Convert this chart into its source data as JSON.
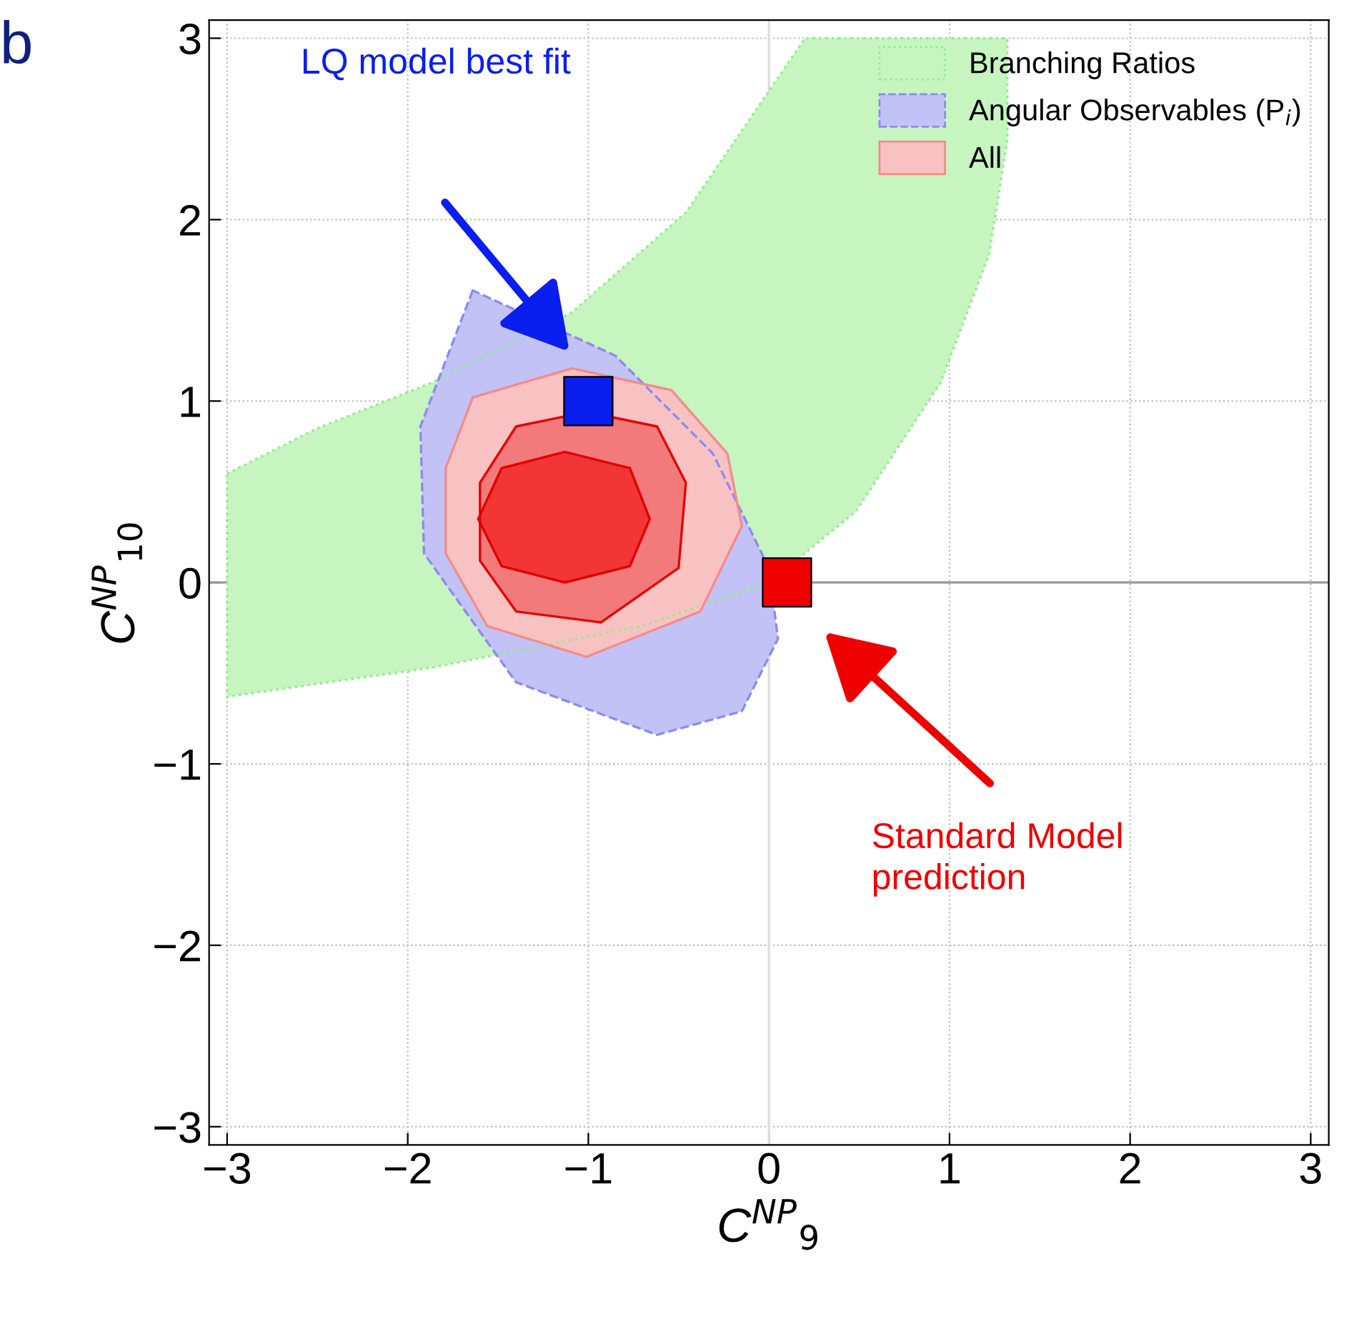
{
  "chart_data": {
    "type": "area",
    "xlabel": "C$^{NP}$$_{9}$",
    "ylabel": "C$^{NP}$$_{10}$",
    "xlim": [
      -3.1,
      3.1
    ],
    "ylim": [
      -3.1,
      3.1
    ],
    "xticks": [
      {
        "value": -3,
        "label": "−3"
      },
      {
        "value": -2,
        "label": "−2"
      },
      {
        "value": -1,
        "label": "−1"
      },
      0,
      1,
      2,
      3
    ],
    "yticks": [
      {
        "value": -3,
        "label": "−3"
      },
      {
        "value": -2,
        "label": "−2"
      },
      {
        "value": -1,
        "label": "−1"
      },
      0,
      1,
      2,
      3
    ],
    "grid": true,
    "legend": "top right",
    "ref_lines": [
      {
        "axis": "y",
        "value": 0,
        "label": null,
        "color": "#999999"
      },
      {
        "axis": "x",
        "value": 0,
        "label": null,
        "color": "#dddddd"
      }
    ],
    "series": [
      {
        "name": "Branching Ratios",
        "color": "#c6f5c0",
        "line_style": "dotted",
        "x": [
          -3,
          -2.5,
          -1.87,
          -1.09,
          -0.46,
          0.2,
          1.32,
          1.32,
          1.22,
          0.95,
          0.48,
          0,
          -0.7,
          -1.87,
          -3
        ],
        "values": [
          0.6,
          0.85,
          1.1,
          1.49,
          2.04,
          3,
          3,
          2.44,
          1.81,
          1.1,
          0.39,
          0,
          -0.24,
          -0.47,
          -0.63
        ]
      },
      {
        "name": "Angular Observables (P$_{i}$)",
        "color": "#c2c2f7",
        "line_style": "dashed",
        "x": [
          -1.64,
          -1.93,
          -1.91,
          -1.4,
          -0.62,
          -0.15,
          0.05,
          0,
          -0.31,
          -0.85
        ],
        "values": [
          1.61,
          0.86,
          0.16,
          -0.55,
          -0.84,
          -0.71,
          -0.31,
          0.08,
          0.71,
          1.25
        ]
      },
      {
        "name": "All",
        "color": "#f9c2c2",
        "line_style": "solid",
        "x": [
          -1.79,
          -1.64,
          -1.09,
          -0.54,
          -0.23,
          -0.15,
          -0.38,
          -1.01,
          -1.56,
          -1.79
        ],
        "values": [
          0.63,
          1.02,
          1.18,
          1.06,
          0.71,
          0.31,
          -0.16,
          -0.41,
          -0.24,
          0.16
        ]
      },
      {
        "color": "#f27a7a",
        "line_style": "solid",
        "x": [
          -1.6,
          -1.4,
          -1.01,
          -0.62,
          -0.46,
          -0.5,
          -0.93,
          -1.4,
          -1.6
        ],
        "values": [
          0.55,
          0.86,
          0.94,
          0.86,
          0.55,
          0.08,
          -0.22,
          -0.16,
          0.12
        ]
      },
      {
        "color": "#f23535",
        "line_style": "solid",
        "x": [
          -1.61,
          -1.48,
          -1.13,
          -0.77,
          -0.66,
          -0.77,
          -1.13,
          -1.48
        ],
        "values": [
          0.35,
          0.63,
          0.72,
          0.63,
          0.35,
          0.09,
          0,
          0.09
        ]
      },
      {
        "type": "scatter",
        "marker": "square",
        "color": "#0a1ef0",
        "x": [
          -1
        ],
        "values": [
          1
        ]
      },
      {
        "type": "scatter",
        "marker": "square",
        "color": "#ee0000",
        "x": [
          0.1
        ],
        "values": [
          0
        ]
      }
    ],
    "annotations": [
      "b",
      "LQ model best fit",
      "Standard Model\nprediction"
    ]
  }
}
